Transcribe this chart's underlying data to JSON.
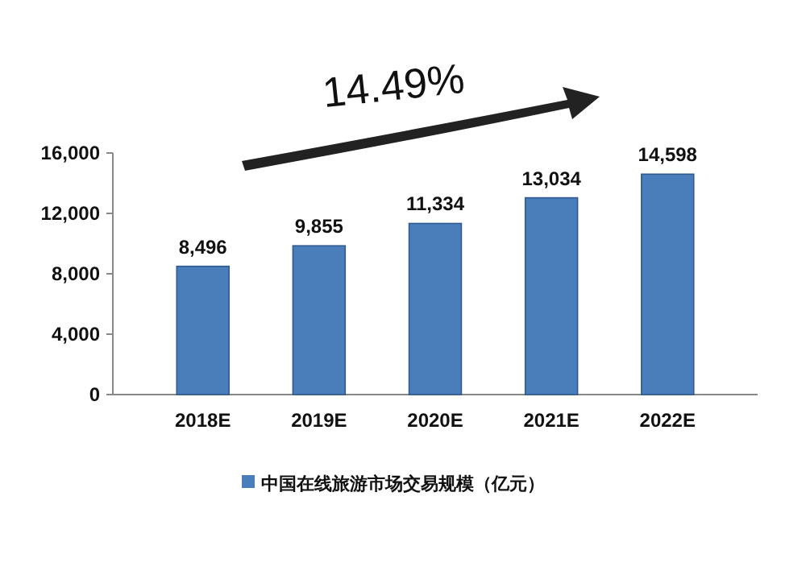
{
  "chart_data": {
    "type": "bar",
    "categories": [
      "2018E",
      "2019E",
      "2020E",
      "2021E",
      "2022E"
    ],
    "series": [
      {
        "name": "中国在线旅游市场交易规模（亿元）",
        "color": "#4a7ebb",
        "values": [
          8496,
          9855,
          11334,
          13034,
          14598
        ],
        "value_labels": [
          "8,496",
          "9,855",
          "11,334",
          "13,034",
          "14,598"
        ]
      }
    ],
    "ylim": [
      0,
      16000
    ],
    "yticks": [
      {
        "value": 0,
        "label": "0"
      },
      {
        "value": 4000,
        "label": "4,000"
      },
      {
        "value": 8000,
        "label": "8,000"
      },
      {
        "value": 12000,
        "label": "12,000"
      },
      {
        "value": 16000,
        "label": "16,000"
      }
    ],
    "annotations": [
      "14.49%"
    ],
    "legend": "bottom"
  }
}
